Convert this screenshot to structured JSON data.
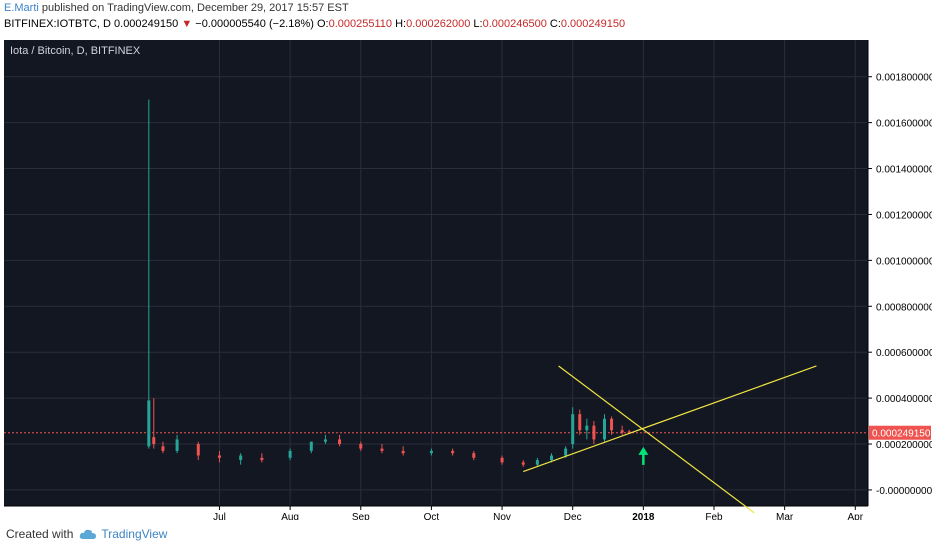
{
  "header": {
    "author": "E.Marti",
    "published": "published on TradingView.com, December 29, 2017 15:57 EST",
    "symbol": "BITFINEX:IOTBTC, D",
    "price": "0.000249150",
    "change_arrow": "▼",
    "change": "−0.000005540 (−2.18%)",
    "o_label": "O:",
    "o_value": "0.000255110",
    "h_label": "H:",
    "h_value": "0.000262000",
    "l_label": "L:",
    "l_value": "0.000246500",
    "c_label": "C:",
    "c_value": "0.000249150"
  },
  "chart_data": {
    "type": "candlestick",
    "title": "Iota / Bitcoin, D, BITFINEX",
    "x_tick_labels": [
      "Jul",
      "Aug",
      "Sep",
      "Oct",
      "Nov",
      "Dec",
      "2018",
      "Feb",
      "Mar",
      "Apr"
    ],
    "x_tick_months": [
      6,
      7,
      8,
      9,
      10,
      11,
      12,
      13,
      14,
      15
    ],
    "x_range_months": [
      2.95,
      15.18
    ],
    "y_tick_labels": [
      "0.001800000",
      "0.001600000",
      "0.001400000",
      "0.001200000",
      "0.001000000",
      "0.000800000",
      "0.000600000",
      "0.000400000",
      "0.000200000",
      "-0.000000000"
    ],
    "y_tick_values": [
      0.0018,
      0.0016,
      0.0014,
      0.0012,
      0.001,
      0.0008,
      0.0006,
      0.0004,
      0.0002,
      0.0
    ],
    "ylim": [
      -7e-05,
      0.00196
    ],
    "last_price_label": "0.000249150",
    "last_price": 0.00024915,
    "grid": true,
    "colors": {
      "background": "#131722",
      "grid": "#2a2e39",
      "up": "#26a69a",
      "down": "#ef5350",
      "trendline": "#f0e442",
      "arrow": "#00e676",
      "axis_text": "#000000",
      "price_tag": "#ef5350"
    },
    "series": [
      {
        "name": "IOTBTC",
        "ohlc": [
          [
            5.0,
            0.00019,
            0.0017,
            0.00018,
            0.00039
          ],
          [
            5.07,
            0.00023,
            0.0004,
            0.00018,
            0.0002
          ],
          [
            5.2,
            0.00019,
            0.00021,
            0.00016,
            0.00017
          ],
          [
            5.4,
            0.00017,
            0.00024,
            0.00016,
            0.00022
          ],
          [
            5.7,
            0.0002,
            0.00021,
            0.00013,
            0.00015
          ],
          [
            6.0,
            0.00015,
            0.00017,
            0.00012,
            0.00014
          ],
          [
            6.3,
            0.00013,
            0.00016,
            0.00011,
            0.00015
          ],
          [
            6.6,
            0.00014,
            0.00016,
            0.00012,
            0.00013
          ],
          [
            7.0,
            0.00014,
            0.00018,
            0.00013,
            0.00017
          ],
          [
            7.3,
            0.00017,
            0.00021,
            0.00016,
            0.00021
          ],
          [
            7.5,
            0.00021,
            0.00024,
            0.0002,
            0.00022
          ],
          [
            7.7,
            0.00022,
            0.00024,
            0.00019,
            0.0002
          ],
          [
            8.0,
            0.0002,
            0.00021,
            0.00017,
            0.00018
          ],
          [
            8.3,
            0.00018,
            0.0002,
            0.00016,
            0.00017
          ],
          [
            8.6,
            0.00017,
            0.00019,
            0.00015,
            0.00016
          ],
          [
            9.0,
            0.00016,
            0.00018,
            0.00015,
            0.00017
          ],
          [
            9.3,
            0.00017,
            0.00018,
            0.00015,
            0.00016
          ],
          [
            9.6,
            0.00016,
            0.00017,
            0.00013,
            0.00014
          ],
          [
            10.0,
            0.00014,
            0.00015,
            0.00011,
            0.00012
          ],
          [
            10.3,
            0.00012,
            0.00013,
            0.0001,
            0.00011
          ],
          [
            10.5,
            0.00011,
            0.00014,
            0.0001,
            0.00013
          ],
          [
            10.7,
            0.00013,
            0.00016,
            0.00012,
            0.00015
          ],
          [
            10.9,
            0.00015,
            0.00019,
            0.00014,
            0.00018
          ],
          [
            11.0,
            0.0002,
            0.00036,
            0.00018,
            0.00033
          ],
          [
            11.1,
            0.00033,
            0.00035,
            0.00024,
            0.00026
          ],
          [
            11.2,
            0.00026,
            0.00031,
            0.00022,
            0.00028
          ],
          [
            11.3,
            0.00028,
            0.0003,
            0.0002,
            0.00022
          ],
          [
            11.45,
            0.00022,
            0.00033,
            0.00021,
            0.00031
          ],
          [
            11.55,
            0.00031,
            0.00032,
            0.00024,
            0.00026
          ],
          [
            11.7,
            0.00026,
            0.00028,
            0.00024,
            0.00025
          ],
          [
            11.8,
            0.0002551,
            0.000262,
            0.0002465,
            0.00024915
          ]
        ]
      }
    ],
    "trendlines": [
      {
        "name": "rising support",
        "from": [
          10.3,
          8e-05
        ],
        "to": [
          14.45,
          0.00054
        ]
      },
      {
        "name": "falling resistance",
        "from": [
          10.8,
          0.00054
        ],
        "to": [
          13.57,
          -0.0001
        ]
      }
    ],
    "annotations": [
      {
        "type": "arrow_up",
        "at_month": 12.0,
        "at_value": 0.00017
      }
    ]
  },
  "footer": {
    "created_with": "Created with",
    "brand": "TradingView"
  }
}
